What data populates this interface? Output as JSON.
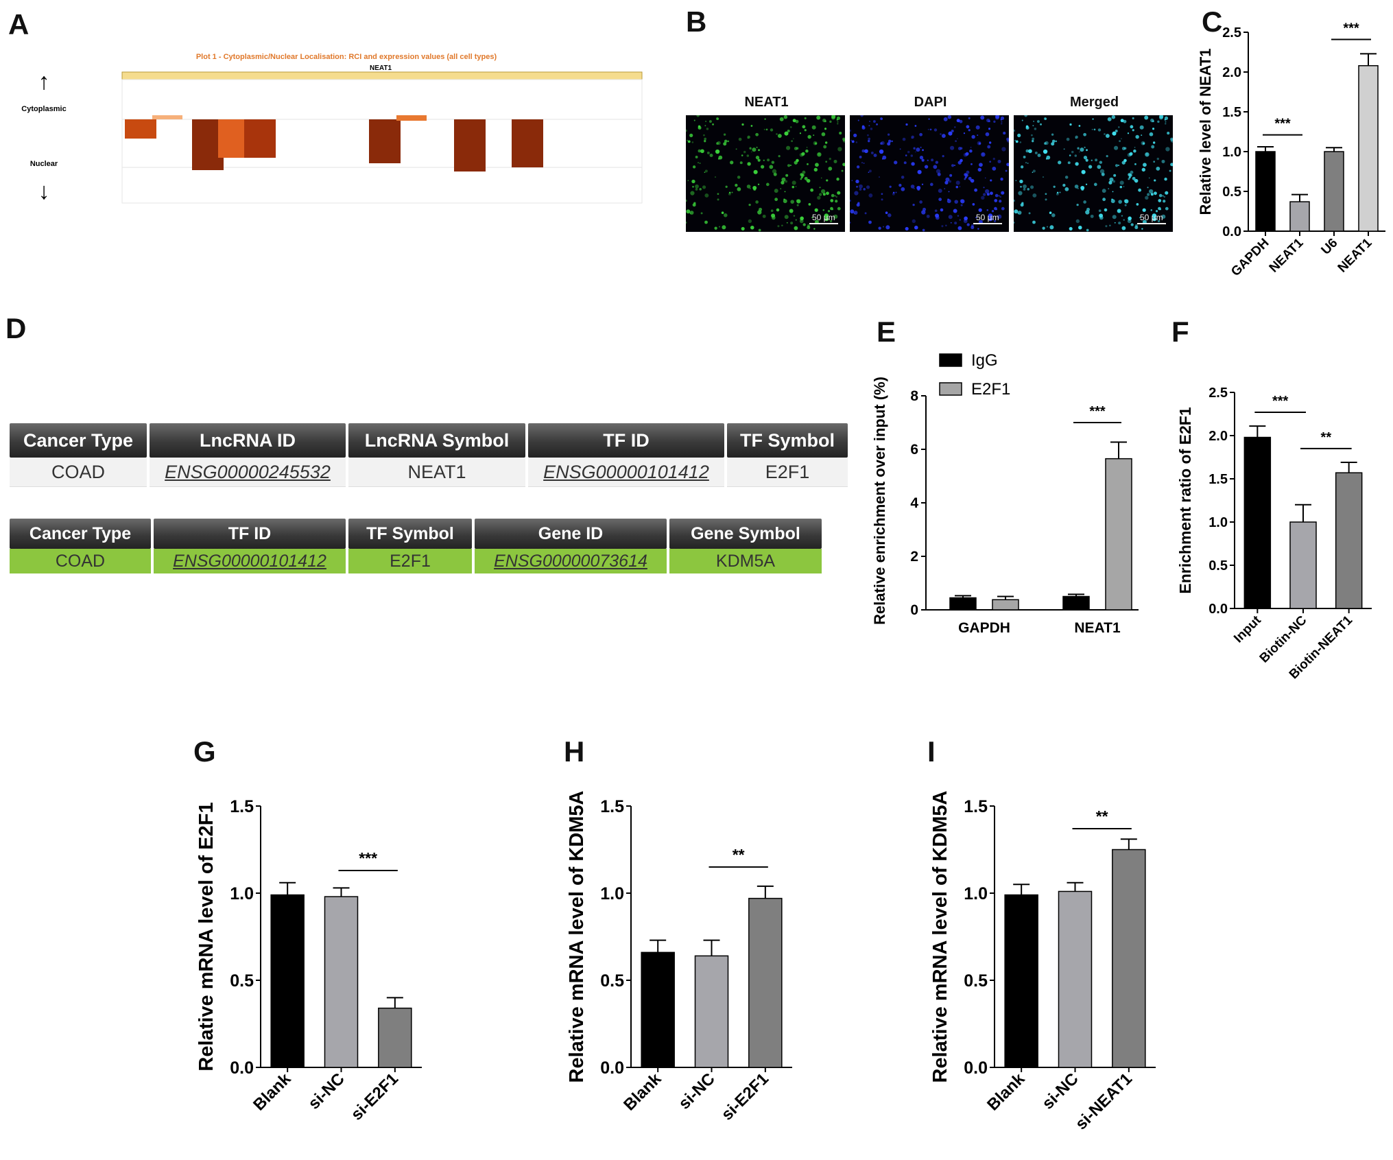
{
  "panel_labels": {
    "a": "A",
    "b": "B",
    "c": "C",
    "d": "D",
    "e": "E",
    "f": "F",
    "g": "G",
    "h": "H",
    "i": "I"
  },
  "panel_a": {
    "title": "Plot 1 - Cytoplasmic/Nuclear Localisation: RCI and expression values (all cell types)",
    "gene": "NEAT1",
    "cytoplasmic_label": "Cytoplasmic",
    "nuclear_label": "Nuclear",
    "up_arrow": "↑",
    "down_arrow": "↓",
    "title_color": "#e0782a",
    "header_color": "#f5dc8e",
    "bar_colors": [
      "#c84a10",
      "#f6b07a",
      "#8a2a0a",
      "#e06020",
      "#a8340c",
      "#8a2a0a",
      "#e87830",
      "#8a2a0a",
      "#8a2a0a"
    ]
  },
  "panel_b": {
    "titles": [
      "NEAT1",
      "DAPI",
      "Merged"
    ],
    "scale_bar": "50 μm",
    "colors": [
      "#3ad13a",
      "#2a3cff",
      "#40e0f0"
    ]
  },
  "panel_d": {
    "table1": {
      "headers": [
        "Cancer Type",
        "LncRNA ID",
        "LncRNA Symbol",
        "TF ID",
        "TF Symbol"
      ],
      "row": [
        "COAD",
        "ENSG00000245532",
        "NEAT1",
        "ENSG00000101412",
        "E2F1"
      ]
    },
    "table2": {
      "headers": [
        "Cancer Type",
        "TF ID",
        "TF Symbol",
        "Gene ID",
        "Gene Symbol"
      ],
      "row": [
        "COAD",
        "ENSG00000101412",
        "E2F1",
        "ENSG00000073614",
        "KDM5A"
      ]
    }
  },
  "chart_data": [
    {
      "id": "C",
      "type": "bar",
      "categories": [
        "GAPDH",
        "NEAT1",
        "U6",
        "NEAT1"
      ],
      "values": [
        1.0,
        0.37,
        1.0,
        2.08
      ],
      "errors": [
        0.06,
        0.09,
        0.05,
        0.15
      ],
      "colors": [
        "#000000",
        "#a6a6ab",
        "#7f7f7f",
        "#d0d0d0"
      ],
      "ylabel": "Relative level of NEAT1",
      "ylim": [
        0,
        2.5
      ],
      "yticks": [
        "0.0",
        "0.5",
        "1.0",
        "1.5",
        "2.0",
        "2.5"
      ],
      "significance": [
        {
          "from": 0,
          "to": 1,
          "y": 1.21,
          "label": "***"
        },
        {
          "from": 2,
          "to": 3,
          "y": 2.41,
          "label": "***"
        }
      ]
    },
    {
      "id": "E",
      "type": "bar",
      "categories": [
        "GAPDH",
        "NEAT1"
      ],
      "series": [
        {
          "name": "IgG",
          "values": [
            0.45,
            0.5
          ],
          "errors": [
            0.08,
            0.08
          ],
          "color": "#000000"
        },
        {
          "name": "E2F1",
          "values": [
            0.38,
            5.65
          ],
          "errors": [
            0.12,
            0.62
          ],
          "color": "#a6a6a6"
        }
      ],
      "ylabel": "Relative enrichment over input (%)",
      "ylim": [
        0,
        8
      ],
      "yticks": [
        "0",
        "2",
        "4",
        "6",
        "8"
      ],
      "legend": "top-left",
      "significance": [
        {
          "from": 0,
          "to": 1,
          "group": 1,
          "y": 7.0,
          "label": "***"
        }
      ]
    },
    {
      "id": "F",
      "type": "bar",
      "categories": [
        "Input",
        "Biotin-NC",
        "Biotin-NEAT1"
      ],
      "values": [
        1.98,
        1.0,
        1.57
      ],
      "errors": [
        0.13,
        0.2,
        0.12
      ],
      "colors": [
        "#000000",
        "#a6a6ab",
        "#7f7f7f"
      ],
      "ylabel": "Enrichment ratio of E2F1",
      "ylim": [
        0,
        2.5
      ],
      "yticks": [
        "0.0",
        "0.5",
        "1.0",
        "1.5",
        "2.0",
        "2.5"
      ],
      "significance": [
        {
          "from": 0,
          "to": 1,
          "y": 2.27,
          "label": "***"
        },
        {
          "from": 1,
          "to": 2,
          "y": 1.85,
          "label": "**"
        }
      ]
    },
    {
      "id": "G",
      "type": "bar",
      "categories": [
        "Blank",
        "si-NC",
        "si-E2F1"
      ],
      "values": [
        0.99,
        0.98,
        0.34
      ],
      "errors": [
        0.07,
        0.05,
        0.06
      ],
      "colors": [
        "#000000",
        "#a6a6ab",
        "#7f7f7f"
      ],
      "ylabel": "Relative mRNA level of E2F1",
      "ylim": [
        0,
        1.5
      ],
      "yticks": [
        "0.0",
        "0.5",
        "1.0",
        "1.5"
      ],
      "significance": [
        {
          "from": 1,
          "to": 2,
          "y": 1.13,
          "label": "***"
        }
      ]
    },
    {
      "id": "H",
      "type": "bar",
      "categories": [
        "Blank",
        "si-NC",
        "si-E2F1"
      ],
      "values": [
        0.66,
        0.64,
        0.97
      ],
      "errors": [
        0.07,
        0.09,
        0.07
      ],
      "colors": [
        "#000000",
        "#a6a6ab",
        "#7f7f7f"
      ],
      "ylabel": "Relative mRNA level of KDM5A",
      "ylim": [
        0,
        1.5
      ],
      "yticks": [
        "0.0",
        "0.5",
        "1.0",
        "1.5"
      ],
      "significance": [
        {
          "from": 1,
          "to": 2,
          "y": 1.15,
          "label": "**"
        }
      ]
    },
    {
      "id": "I",
      "type": "bar",
      "categories": [
        "Blank",
        "si-NC",
        "si-NEAT1"
      ],
      "values": [
        0.99,
        1.01,
        1.25
      ],
      "errors": [
        0.06,
        0.05,
        0.06
      ],
      "colors": [
        "#000000",
        "#a6a6ab",
        "#7f7f7f"
      ],
      "ylabel": "Relative mRNA level of KDM5A",
      "ylim": [
        0,
        1.5
      ],
      "yticks": [
        "0.0",
        "0.5",
        "1.0",
        "1.5"
      ],
      "significance": [
        {
          "from": 1,
          "to": 2,
          "y": 1.37,
          "label": "**"
        }
      ]
    }
  ]
}
